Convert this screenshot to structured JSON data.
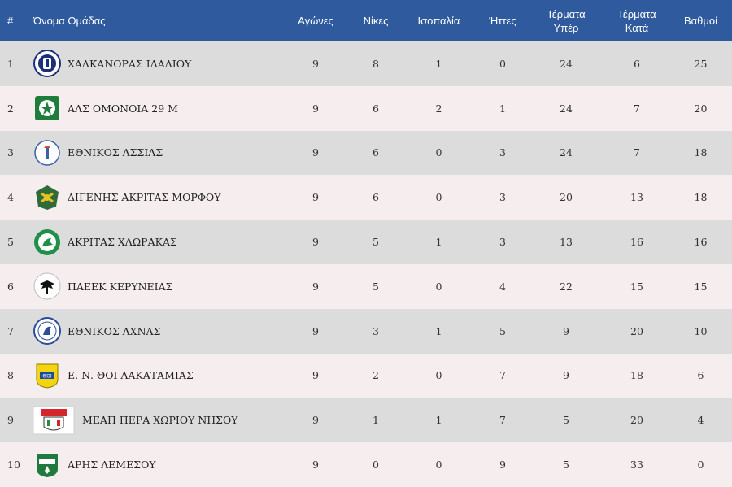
{
  "headers": {
    "rank": "#",
    "team": "Όνομα Ομάδας",
    "played": "Αγώνες",
    "wins": "Νίκες",
    "draws": "Ισοπαλία",
    "losses": "Ήττες",
    "goals_for_1": "Τέρματα",
    "goals_for_2": "Υπέρ",
    "goals_against_1": "Τέρματα",
    "goals_against_2": "Κατά",
    "points": "Βαθμοί"
  },
  "colors": {
    "header_bg": "#2f5a9d",
    "row_odd": "#dcdcdc",
    "row_even": "#f6eeee"
  },
  "rows": [
    {
      "rank": "1",
      "team": "ΧΑΛΚΑΝΟΡΑΣ ΙΔΑΛΙΟΥ",
      "logo": "chalkanoras-crest-icon",
      "played": "9",
      "wins": "8",
      "draws": "1",
      "losses": "0",
      "gf": "24",
      "ga": "6",
      "pts": "25"
    },
    {
      "rank": "2",
      "team": "ΑΛΣ ΟΜΟΝΟΙΑ 29 Μ",
      "logo": "omonoia-crest-icon",
      "played": "9",
      "wins": "6",
      "draws": "2",
      "losses": "1",
      "gf": "24",
      "ga": "7",
      "pts": "20"
    },
    {
      "rank": "3",
      "team": "ΕΘΝΙΚΟΣ ΑΣΣΙΑΣ",
      "logo": "ethnikos-assias-crest-icon",
      "played": "9",
      "wins": "6",
      "draws": "0",
      "losses": "3",
      "gf": "24",
      "ga": "7",
      "pts": "18"
    },
    {
      "rank": "4",
      "team": "ΔΙΓΕΝΗΣ ΑΚΡΙΤΑΣ ΜΟΡΦΟΥ",
      "logo": "digenis-crest-icon",
      "played": "9",
      "wins": "6",
      "draws": "0",
      "losses": "3",
      "gf": "20",
      "ga": "13",
      "pts": "18"
    },
    {
      "rank": "5",
      "team": "ΑΚΡΙΤΑΣ ΧΛΩΡΑΚΑΣ",
      "logo": "akritas-crest-icon",
      "played": "9",
      "wins": "5",
      "draws": "1",
      "losses": "3",
      "gf": "13",
      "ga": "16",
      "pts": "16"
    },
    {
      "rank": "6",
      "team": "ΠΑΕΕΚ ΚΕΡΥΝΕΙΑΣ",
      "logo": "paeek-crest-icon",
      "played": "9",
      "wins": "5",
      "draws": "0",
      "losses": "4",
      "gf": "22",
      "ga": "15",
      "pts": "15"
    },
    {
      "rank": "7",
      "team": "ΕΘΝΙΚΟΣ ΑΧΝΑΣ",
      "logo": "ethnikos-achnas-crest-icon",
      "played": "9",
      "wins": "3",
      "draws": "1",
      "losses": "5",
      "gf": "9",
      "ga": "20",
      "pts": "10"
    },
    {
      "rank": "8",
      "team": "Ε. Ν. ΘΟΙ ΛΑΚΑΤΑΜΙΑΣ",
      "logo": "thoi-crest-icon",
      "played": "9",
      "wins": "2",
      "draws": "0",
      "losses": "7",
      "gf": "9",
      "ga": "18",
      "pts": "6"
    },
    {
      "rank": "9",
      "team": "ΜΕΑΠ ΠΕΡΑ ΧΩΡΙΟΥ ΝΗΣΟΥ",
      "logo": "meap-crest-icon",
      "played": "9",
      "wins": "1",
      "draws": "1",
      "losses": "7",
      "gf": "5",
      "ga": "20",
      "pts": "4"
    },
    {
      "rank": "10",
      "team": "ΑΡΗΣ ΛΕΜΕΣΟΥ",
      "logo": "aris-crest-icon",
      "played": "9",
      "wins": "0",
      "draws": "0",
      "losses": "9",
      "gf": "5",
      "ga": "33",
      "pts": "0"
    }
  ]
}
